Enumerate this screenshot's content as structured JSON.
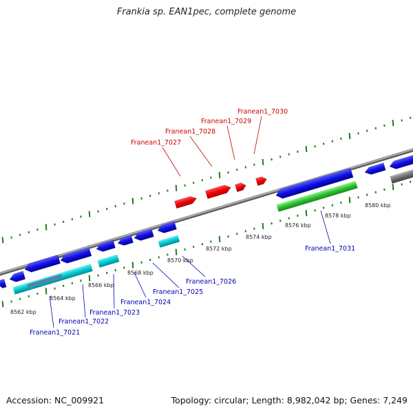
{
  "title": "Frankia sp. EAN1pec, complete genome",
  "footer": {
    "accession": "Accession: NC_009921",
    "summary": "Topology: circular; Length: 8,982,042 bp; Genes: 7,249"
  },
  "colors": {
    "backbone": "#8a8a8a",
    "tick": "#1f7a1f",
    "forward_gene": "#e00000",
    "reverse_gene": "#0000d0",
    "cyan_feature": "#00c8d0",
    "green_feature": "#30c030",
    "gray_feature": "#707070",
    "forward_label": "#cc0000",
    "reverse_label": "#0000b0"
  },
  "scale_labels": [
    "8562 kbp",
    "8564 kbp",
    "8566 kbp",
    "8568 kbp",
    "8570 kbp",
    "8572 kbp",
    "8574 kbp",
    "8576 kbp",
    "8578 kbp",
    "8580 kbp"
  ],
  "forward_genes": [
    "Franean1_7027",
    "Franean1_7028",
    "Franean1_7029",
    "Franean1_7030"
  ],
  "reverse_genes": [
    "Franean1_7021",
    "Franean1_7022",
    "Franean1_7023",
    "Franean1_7024",
    "Franean1_7025",
    "Franean1_7026",
    "Franean1_7031"
  ]
}
